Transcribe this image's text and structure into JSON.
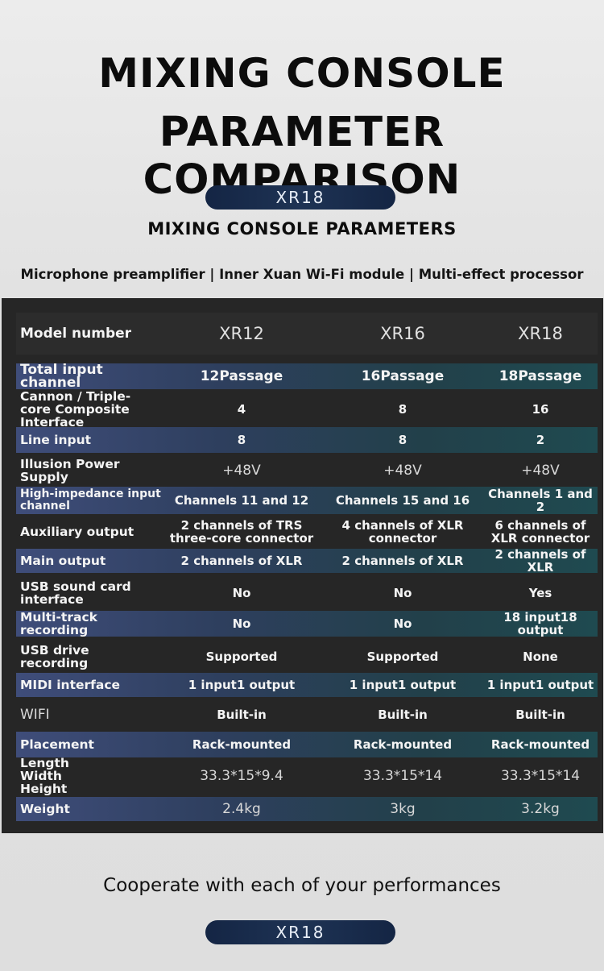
{
  "header": {
    "title_line1": "MIXING CONSOLE",
    "title_line2": "PARAMETER COMPARISON",
    "badge": "XR18",
    "subtitle": "MIXING CONSOLE PARAMETERS",
    "features": "Microphone preamplifier | Inner Xuan Wi-Fi module | Multi-effect processor"
  },
  "table": {
    "header": {
      "label": "Model number",
      "cols": [
        "XR12",
        "XR16",
        "XR18"
      ]
    },
    "rows": [
      {
        "label": "Total input channel",
        "cols": [
          "12Passage",
          "16Passage",
          "18Passage"
        ]
      },
      {
        "label": "Cannon / Triple-core Composite Interface",
        "cols": [
          "4",
          "8",
          "16"
        ]
      },
      {
        "label": "Line input",
        "cols": [
          "8",
          "8",
          "2"
        ]
      },
      {
        "label": "Illusion Power Supply",
        "cols": [
          "+48V",
          "+48V",
          "+48V"
        ]
      },
      {
        "label": "High-impedance input channel",
        "cols": [
          "Channels 11 and 12",
          "Channels 15 and 16",
          "Channels 1 and 2"
        ]
      },
      {
        "label": "Auxiliary output",
        "cols": [
          "2 channels of TRS three-core connector",
          "4 channels of XLR connector",
          "6 channels of XLR connector"
        ]
      },
      {
        "label": "Main output",
        "cols": [
          "2 channels of XLR",
          "2 channels of XLR",
          "2 channels of XLR"
        ]
      },
      {
        "label": "USB sound card interface",
        "cols": [
          "No",
          "No",
          "Yes"
        ]
      },
      {
        "label": "Multi-track recording",
        "cols": [
          "No",
          "No",
          "18 input18 output"
        ]
      },
      {
        "label": "USB drive recording",
        "cols": [
          "Supported",
          "Supported",
          "None"
        ]
      },
      {
        "label": "MIDI interface",
        "cols": [
          "1 input1 output",
          "1 input1 output",
          "1 input1 output"
        ]
      },
      {
        "label": "WIFI",
        "cols": [
          "Built-in",
          "Built-in",
          "Built-in"
        ]
      },
      {
        "label": "Placement",
        "cols": [
          "Rack-mounted",
          "Rack-mounted",
          "Rack-mounted"
        ]
      },
      {
        "label": "Length Width Height",
        "cols": [
          "33.3*15*9.4",
          "33.3*15*14",
          "33.3*15*14"
        ]
      },
      {
        "label": "Weight",
        "cols": [
          "2.4kg",
          "3kg",
          "3.2kg"
        ]
      }
    ]
  },
  "footer": {
    "tagline": "Cooperate with each of your performances",
    "badge": "XR18"
  },
  "colors": {
    "panel": "#262626",
    "highlight_start": "#3f4d7a",
    "highlight_end": "#1f4a50",
    "badge": "#1e3354"
  }
}
